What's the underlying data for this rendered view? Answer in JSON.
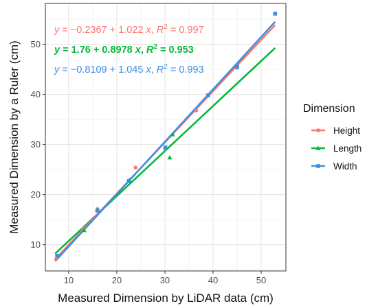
{
  "chart_data": {
    "type": "scatter",
    "title": "",
    "xlabel": "Measured Dimension by LiDAR data (cm)",
    "ylabel": "Measured Dimension by a Ruler (cm)",
    "xlim": [
      5.3,
      55.0
    ],
    "ylim": [
      4.9,
      58.0
    ],
    "xticks": [
      10,
      20,
      30,
      40,
      50
    ],
    "yticks": [
      10,
      20,
      30,
      40,
      50
    ],
    "grid": true,
    "legend": {
      "title": "Dimension",
      "position": "right"
    },
    "series": [
      {
        "name": "Height",
        "color": "#f8766d",
        "marker": "circle",
        "points": [
          [
            7.4,
            7.1
          ],
          [
            13.0,
            13.2
          ],
          [
            16.0,
            17.1
          ],
          [
            23.9,
            25.4
          ],
          [
            30.0,
            29.2
          ],
          [
            36.5,
            36.8
          ],
          [
            45.0,
            45.3
          ]
        ],
        "fit": {
          "intercept": -0.2367,
          "slope": 1.022,
          "r2": 0.997
        },
        "equation": {
          "y_prefix": "y = −0.2367 + 1.022 ",
          "x_var": "x",
          "sep": ", ",
          "r2_label": "R",
          "r2_sup": "2",
          "r2_value": " = 0.997"
        }
      },
      {
        "name": "Length",
        "color": "#00ba38",
        "marker": "triangle",
        "points": [
          [
            13.2,
            12.9
          ],
          [
            15.9,
            17.0
          ],
          [
            22.6,
            22.9
          ],
          [
            31.0,
            27.4
          ],
          [
            31.6,
            32.0
          ]
        ],
        "fit": {
          "intercept": 1.76,
          "slope": 0.8978,
          "r2": 0.953
        },
        "equation": {
          "y_prefix": "y = 1.76 + 0.8978 ",
          "x_var": "x",
          "sep": ", ",
          "r2_label": "R",
          "r2_sup": "2",
          "r2_value": " = 0.953"
        }
      },
      {
        "name": "Width",
        "color": "#3d8fe6",
        "marker": "square",
        "points": [
          [
            7.6,
            7.8
          ],
          [
            16.0,
            16.8
          ],
          [
            22.5,
            22.7
          ],
          [
            30.1,
            29.4
          ],
          [
            39.0,
            39.8
          ],
          [
            45.0,
            45.5
          ],
          [
            52.9,
            56.1
          ]
        ],
        "fit": {
          "intercept": -0.8109,
          "slope": 1.045,
          "r2": 0.993
        },
        "equation": {
          "y_prefix": "y = −0.8109 + 1.045 ",
          "x_var": "x",
          "sep": ", ",
          "r2_label": "R",
          "r2_sup": "2",
          "r2_value": " = 0.993"
        }
      }
    ],
    "fit_x_range": [
      7.2,
      52.9
    ]
  }
}
